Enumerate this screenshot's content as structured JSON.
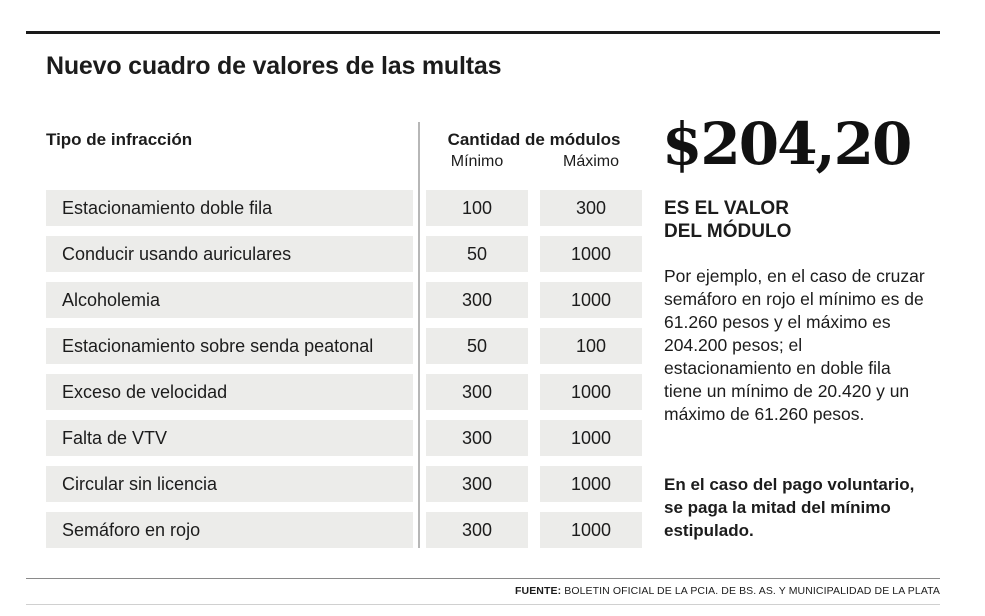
{
  "title": "Nuevo cuadro de valores de las multas",
  "table": {
    "header_tipo": "Tipo de infracción",
    "header_cantidad": "Cantidad de módulos",
    "header_min": "Mínimo",
    "header_max": "Máximo",
    "rows": [
      {
        "name": "Estacionamiento doble fila",
        "min": "100",
        "max": "300"
      },
      {
        "name": "Conducir usando auriculares",
        "min": "50",
        "max": "1000"
      },
      {
        "name": "Alcoholemia",
        "min": "300",
        "max": "1000"
      },
      {
        "name": "Estacionamiento sobre senda peatonal",
        "min": "50",
        "max": "100"
      },
      {
        "name": "Exceso de velocidad",
        "min": "300",
        "max": "1000"
      },
      {
        "name": "Falta de VTV",
        "min": "300",
        "max": "1000"
      },
      {
        "name": "Circular sin licencia",
        "min": "300",
        "max": "1000"
      },
      {
        "name": "Semáforo en rojo",
        "min": "300",
        "max": "1000"
      }
    ]
  },
  "sidebar": {
    "value": "$204,20",
    "value_label_line1": "ES EL VALOR",
    "value_label_line2": "DEL MÓDULO",
    "example": "Por ejemplo, en el caso de cruzar semáforo en rojo el mínimo es de 61.260 pesos y el máximo es 204.200 pesos; el estacionamiento en doble fila tiene un mínimo de 20.420 y un máximo de 61.260 pesos.",
    "voluntary": "En el caso del pago voluntario, se paga la mitad del mínimo estipulado."
  },
  "footer": {
    "source_label": "FUENTE:",
    "source_text": " BOLETIN OFICIAL DE LA PCIA. DE BS. AS. Y MUNICIPALIDAD DE LA PLATA"
  },
  "colors": {
    "cell_bg": "#ececea",
    "text": "#1c1c1c",
    "divider": "#b7b7b7"
  }
}
